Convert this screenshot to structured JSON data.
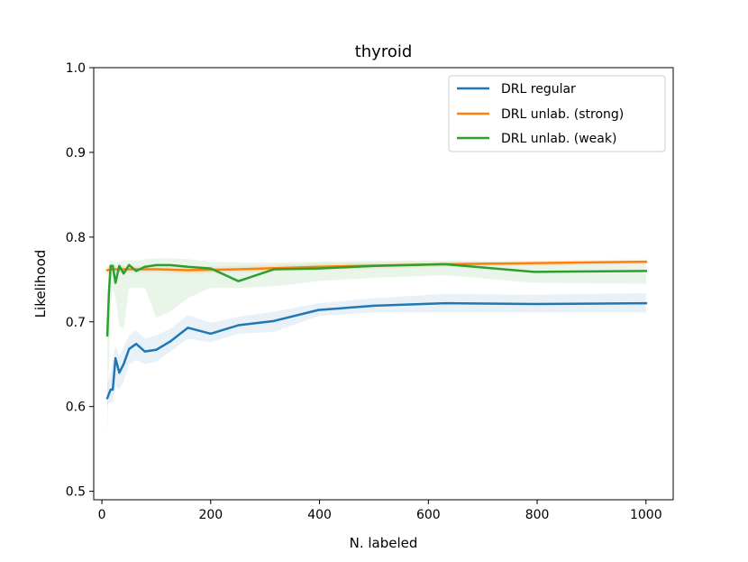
{
  "chart_data": {
    "type": "line",
    "title": "thyroid",
    "xlabel": "N. labeled",
    "ylabel": "Likelihood",
    "xlim": [
      -15,
      1050
    ],
    "ylim": [
      0.49,
      1.0
    ],
    "xticks": [
      0,
      200,
      400,
      600,
      800,
      1000
    ],
    "xtick_labels": [
      "0",
      "200",
      "400",
      "600",
      "800",
      "1000"
    ],
    "yticks": [
      0.5,
      0.6,
      0.7,
      0.8,
      0.9,
      1.0
    ],
    "ytick_labels": [
      "0.5",
      "0.6",
      "0.7",
      "0.8",
      "0.9",
      "1.0"
    ],
    "legend_position": "top-right",
    "series": [
      {
        "name": "DRL regular",
        "color": "#1f77b4",
        "x": [
          10,
          13,
          16,
          20,
          25,
          32,
          40,
          50,
          63,
          79,
          100,
          126,
          158,
          200,
          251,
          316,
          398,
          501,
          631,
          794,
          1000
        ],
        "y": [
          0.61,
          0.615,
          0.62,
          0.62,
          0.657,
          0.64,
          0.65,
          0.668,
          0.674,
          0.665,
          0.667,
          0.677,
          0.693,
          0.686,
          0.696,
          0.701,
          0.714,
          0.719,
          0.722,
          0.721,
          0.722
        ],
        "lower": [
          0.6,
          0.605,
          0.605,
          0.605,
          0.625,
          0.62,
          0.63,
          0.65,
          0.655,
          0.65,
          0.653,
          0.665,
          0.68,
          0.676,
          0.686,
          0.688,
          0.707,
          0.711,
          0.711,
          0.711,
          0.711
        ],
        "upper": [
          0.625,
          0.632,
          0.64,
          0.655,
          0.672,
          0.66,
          0.67,
          0.684,
          0.69,
          0.68,
          0.684,
          0.692,
          0.708,
          0.699,
          0.706,
          0.712,
          0.722,
          0.728,
          0.733,
          0.732,
          0.734
        ]
      },
      {
        "name": "DRL unlab. (strong)",
        "color": "#ff7f0e",
        "x": [
          10,
          16,
          25,
          40,
          63,
          100,
          158,
          251,
          398,
          631,
          1000
        ],
        "y": [
          0.761,
          0.762,
          0.762,
          0.762,
          0.762,
          0.762,
          0.761,
          0.762,
          0.765,
          0.768,
          0.771
        ],
        "lower": [
          0.757,
          0.758,
          0.758,
          0.758,
          0.758,
          0.758,
          0.757,
          0.758,
          0.761,
          0.765,
          0.768
        ],
        "upper": [
          0.765,
          0.766,
          0.766,
          0.766,
          0.766,
          0.766,
          0.765,
          0.766,
          0.769,
          0.771,
          0.774
        ]
      },
      {
        "name": "DRL unlab. (weak)",
        "color": "#2ca02c",
        "x": [
          10,
          13,
          16,
          20,
          25,
          32,
          40,
          50,
          63,
          79,
          100,
          126,
          158,
          200,
          251,
          316,
          398,
          501,
          631,
          794,
          1000
        ],
        "y": [
          0.684,
          0.735,
          0.766,
          0.766,
          0.746,
          0.766,
          0.757,
          0.767,
          0.76,
          0.765,
          0.767,
          0.767,
          0.765,
          0.763,
          0.748,
          0.762,
          0.763,
          0.766,
          0.768,
          0.759,
          0.76
        ],
        "lower": [
          0.564,
          0.65,
          0.72,
          0.74,
          0.728,
          0.695,
          0.692,
          0.74,
          0.74,
          0.74,
          0.705,
          0.712,
          0.728,
          0.74,
          0.74,
          0.742,
          0.748,
          0.752,
          0.755,
          0.746,
          0.745
        ],
        "upper": [
          0.7,
          0.77,
          0.773,
          0.772,
          0.77,
          0.771,
          0.772,
          0.773,
          0.772,
          0.774,
          0.775,
          0.775,
          0.774,
          0.771,
          0.77,
          0.77,
          0.771,
          0.772,
          0.772,
          0.77,
          0.771
        ]
      }
    ]
  }
}
